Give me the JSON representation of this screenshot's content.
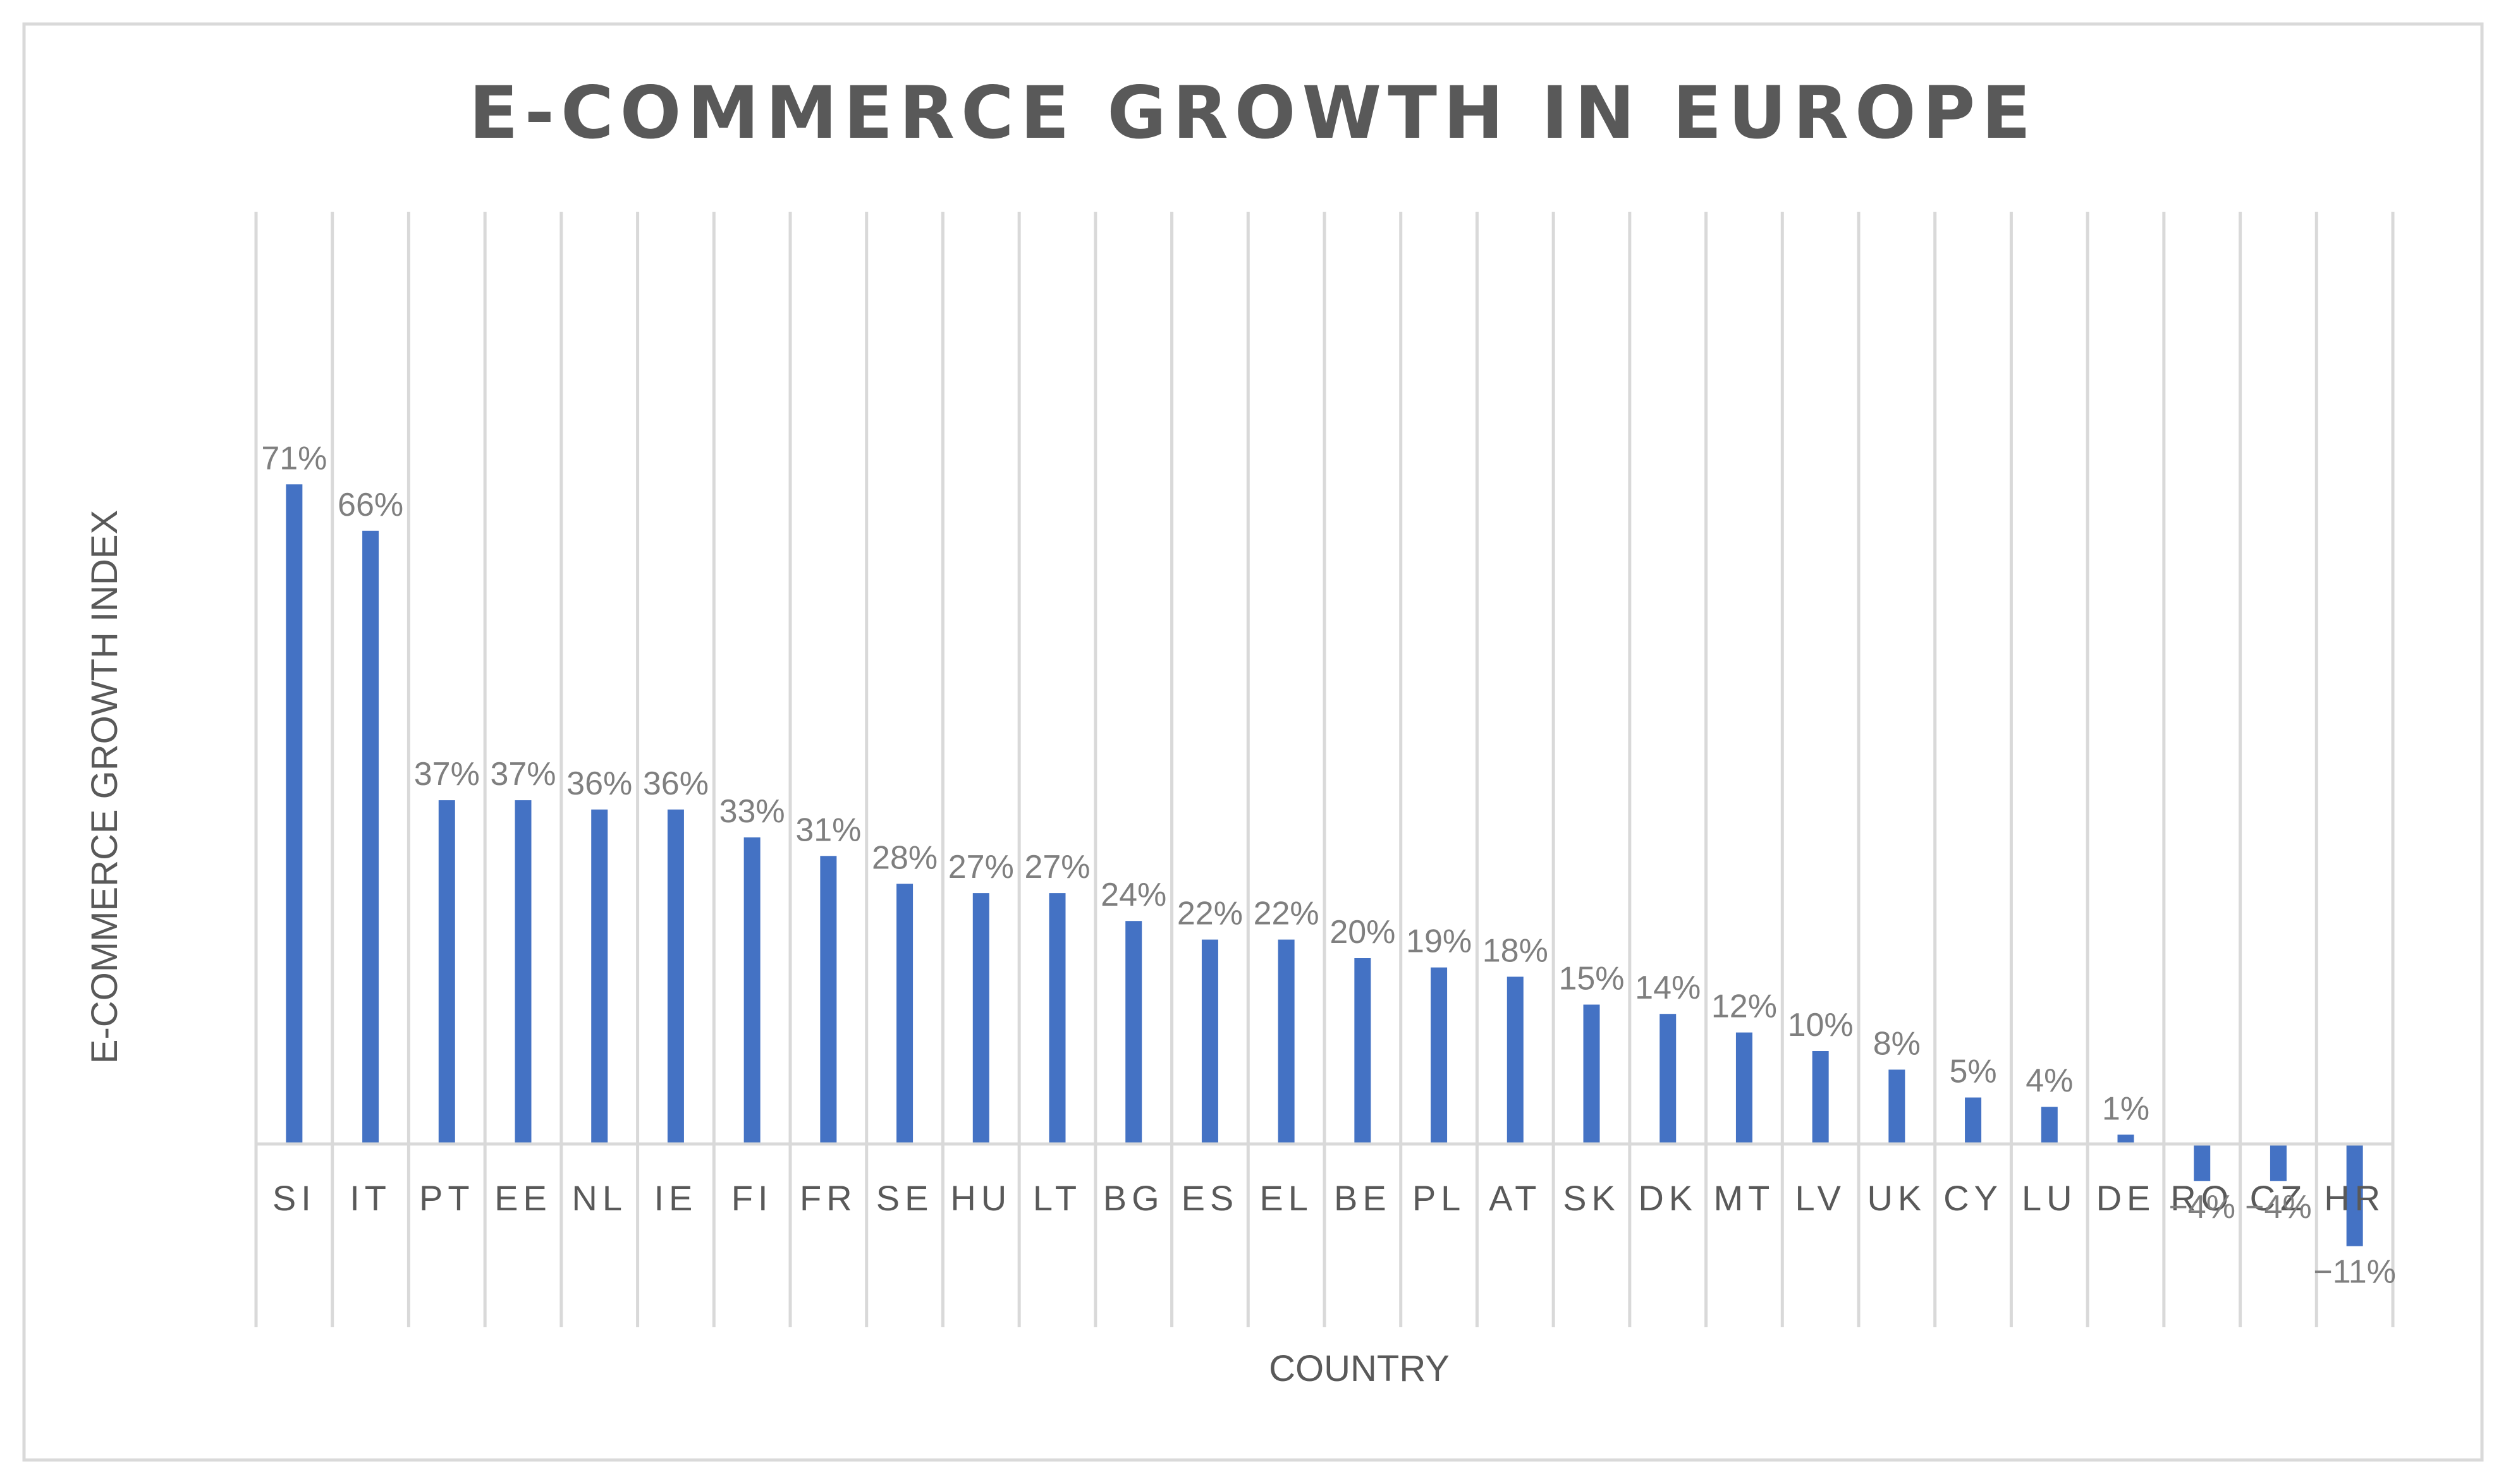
{
  "chart_data": {
    "type": "bar",
    "title": "E-COMMERCE GROWTH IN EUROPE",
    "xlabel": "COUNTRY",
    "ylabel": "E-COMMERCE GROWTH INDEX",
    "grid": "vertical",
    "legend": "none",
    "colors": {
      "bar": "#4472C4",
      "grid": "#d9d9d9",
      "axis": "#d9d9d9",
      "border": "#d9d9d9",
      "text": "#595959",
      "data_label": "#7f7f7f"
    },
    "categories": [
      "SI",
      "IT",
      "PT",
      "EE",
      "NL",
      "IE",
      "FI",
      "FR",
      "SE",
      "HU",
      "LT",
      "BG",
      "ES",
      "EL",
      "BE",
      "PL",
      "AT",
      "SK",
      "DK",
      "MT",
      "LV",
      "UK",
      "CY",
      "LU",
      "DE",
      "RO",
      "CZ",
      "HR"
    ],
    "values": [
      71,
      66,
      37,
      37,
      36,
      36,
      33,
      31,
      28,
      27,
      27,
      24,
      22,
      22,
      20,
      19,
      18,
      15,
      14,
      12,
      10,
      8,
      5,
      4,
      1,
      -4,
      -4,
      -11
    ],
    "value_labels": [
      "71%",
      "66%",
      "37%",
      "37%",
      "36%",
      "36%",
      "33%",
      "31%",
      "28%",
      "27%",
      "27%",
      "24%",
      "22%",
      "22%",
      "20%",
      "19%",
      "18%",
      "15%",
      "14%",
      "12%",
      "10%",
      "8%",
      "5%",
      "4%",
      "1%",
      "−4%",
      "−4%",
      "−11%"
    ],
    "ylim": [
      -20,
      100
    ]
  }
}
